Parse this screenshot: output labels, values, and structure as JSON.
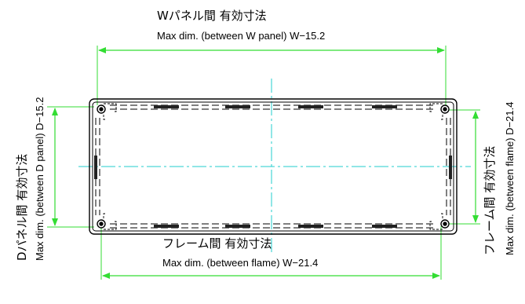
{
  "labels": {
    "top_jp": "Wパネル間 有効寸法",
    "top_en": "Max dim. (between W panel) W−15.2",
    "bottom_jp": "フレーム間 有効寸法",
    "bottom_en": "Max dim. (between flame) W−21.4",
    "left_jp": "Dパネル間 有効寸法",
    "left_en": "Max dim. (between D panel) D−15.2",
    "right_jp": "フレーム間 有効寸法",
    "right_en": "Max dim. (between flame) D−21.4"
  },
  "colors": {
    "dimension_line": "#33dd33",
    "center_line": "#22cccc",
    "outline": "#000000"
  }
}
